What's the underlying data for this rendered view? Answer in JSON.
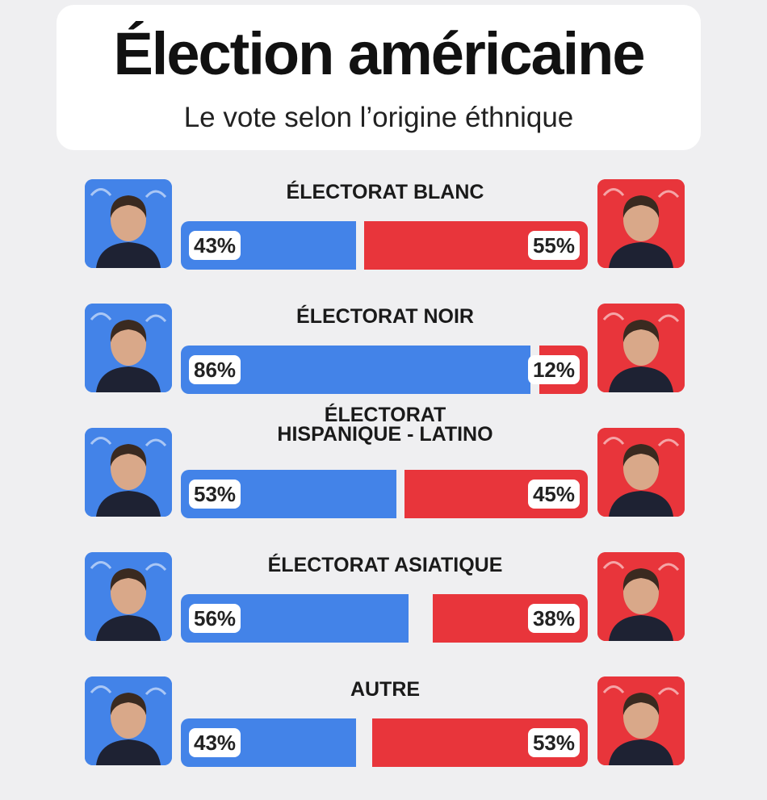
{
  "header": {
    "title": "Élection américaine",
    "subtitle": "Le vote selon l’origine éthnique"
  },
  "colors": {
    "blue": "#4383e8",
    "red": "#e8353b"
  },
  "icons": {
    "left": "person-portrait-icon",
    "right": "person-portrait-icon"
  },
  "chart_data": {
    "type": "bar",
    "title": "Élection américaine",
    "subtitle": "Le vote selon l’origine éthnique",
    "categories": [
      "ÉLECTORAT BLANC",
      "ÉLECTORAT NOIR",
      "ÉLECTORAT HISPANIQUE - LATINO",
      "ÉLECTORAT ASIATIQUE",
      "AUTRE"
    ],
    "label_lines": [
      [
        "ÉLECTORAT BLANC"
      ],
      [
        "ÉLECTORAT NOIR"
      ],
      [
        "ÉLECTORAT",
        "HISPANIQUE - LATINO"
      ],
      [
        "ÉLECTORAT ASIATIQUE"
      ],
      [
        "AUTRE"
      ]
    ],
    "series": [
      {
        "color": "#4383e8",
        "values": [
          43,
          86,
          53,
          56,
          43
        ]
      },
      {
        "color": "#e8353b",
        "values": [
          55,
          12,
          45,
          38,
          53
        ]
      }
    ],
    "value_labels": [
      [
        "43%",
        "86%",
        "53%",
        "56%",
        "43%"
      ],
      [
        "55%",
        "12%",
        "45%",
        "38%",
        "53%"
      ]
    ],
    "xlim": [
      0,
      100
    ]
  }
}
